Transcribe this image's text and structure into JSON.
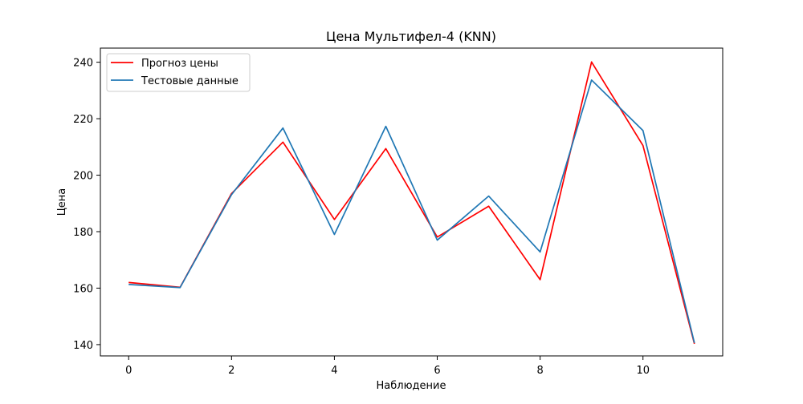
{
  "chart_data": {
    "type": "line",
    "title": "Цена Мультифел-4  (KNN)",
    "xlabel": "Наблюдение",
    "ylabel": "Цена",
    "xlim": [
      -0.55,
      11.55
    ],
    "ylim": [
      136,
      245
    ],
    "xticks": [
      0,
      2,
      4,
      6,
      8,
      10
    ],
    "yticks": [
      140,
      160,
      180,
      200,
      220,
      240
    ],
    "x": [
      0,
      1,
      2,
      3,
      4,
      5,
      6,
      7,
      8,
      9,
      10,
      11
    ],
    "series": [
      {
        "name": "Прогноз цены",
        "color": "#ff0000",
        "values": [
          162.0,
          160.3,
          193.5,
          211.7,
          184.3,
          209.4,
          178.1,
          189.0,
          163.0,
          240.1,
          210.5,
          140.3
        ]
      },
      {
        "name": "Тестовые данные",
        "color": "#1f77b4",
        "values": [
          161.3,
          160.2,
          193.1,
          216.7,
          179.0,
          217.3,
          177.0,
          192.6,
          172.8,
          233.7,
          215.8,
          140.6
        ]
      }
    ],
    "legend_position": "top-left",
    "grid": false
  }
}
